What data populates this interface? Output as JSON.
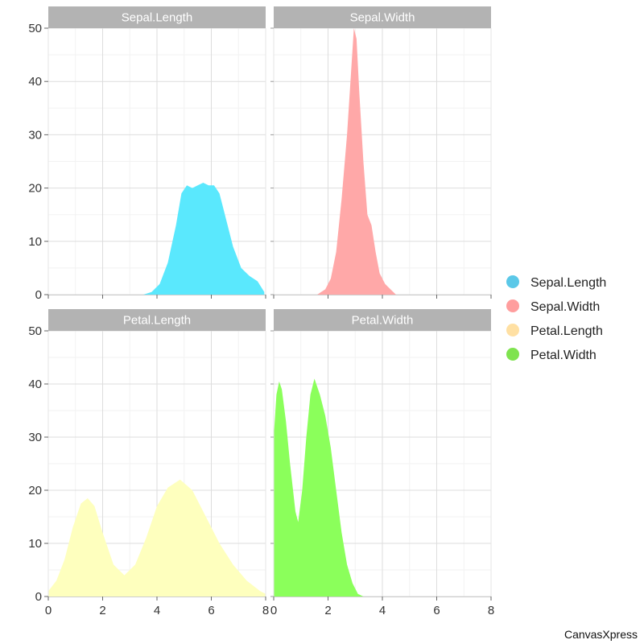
{
  "chart_data": {
    "type": "area",
    "layout": "2x2 facets, shared axes",
    "x_ticks": [
      0,
      2,
      4,
      6,
      8
    ],
    "y_ticks": [
      0,
      10,
      20,
      30,
      40,
      50
    ],
    "xlim": [
      0,
      8
    ],
    "ylim": [
      0,
      50
    ],
    "grid": true,
    "legend_position": "right",
    "panels": [
      {
        "title": "Sepal.Length",
        "color": "#5ae8fd",
        "x": [
          3.5,
          3.8,
          4.1,
          4.4,
          4.7,
          4.9,
          5.1,
          5.3,
          5.5,
          5.7,
          5.9,
          6.1,
          6.3,
          6.5,
          6.8,
          7.1,
          7.4,
          7.7,
          7.95
        ],
        "y": [
          0,
          0.5,
          2,
          6,
          13,
          19,
          20.5,
          20,
          20.5,
          21,
          20.5,
          20.5,
          19,
          15,
          9,
          5,
          3.5,
          2.5,
          0.5
        ]
      },
      {
        "title": "Sepal.Width",
        "color": "#ffa8a8",
        "x": [
          1.6,
          1.9,
          2.1,
          2.3,
          2.5,
          2.7,
          2.85,
          2.95,
          3.05,
          3.15,
          3.3,
          3.45,
          3.6,
          3.75,
          3.9,
          4.1,
          4.3,
          4.5
        ],
        "y": [
          0,
          1,
          3,
          8,
          18,
          30,
          42,
          50,
          48,
          38,
          25,
          15,
          13,
          8,
          4,
          2,
          1,
          0
        ]
      },
      {
        "title": "Petal.Length",
        "color": "#feffbe",
        "x": [
          0,
          0.3,
          0.6,
          0.9,
          1.2,
          1.45,
          1.7,
          2.0,
          2.4,
          2.8,
          3.2,
          3.6,
          4.0,
          4.4,
          4.85,
          5.3,
          5.8,
          6.3,
          6.8,
          7.3,
          7.8,
          8.0
        ],
        "y": [
          1,
          3,
          7,
          13,
          17.5,
          18.5,
          17,
          12,
          6,
          4,
          6,
          11,
          17,
          20.5,
          22,
          20,
          15,
          10,
          6,
          3,
          1,
          0.5
        ]
      },
      {
        "title": "Petal.Width",
        "color": "#8bff5b",
        "x": [
          0,
          0.1,
          0.2,
          0.3,
          0.45,
          0.6,
          0.8,
          0.9,
          1.05,
          1.2,
          1.35,
          1.5,
          1.7,
          1.9,
          2.1,
          2.3,
          2.5,
          2.7,
          2.9,
          3.1,
          3.3
        ],
        "y": [
          30,
          38,
          40.5,
          39,
          33,
          25,
          16,
          14,
          20,
          30,
          38,
          41,
          38,
          34,
          28,
          20,
          12,
          6,
          2.5,
          0.5,
          0
        ]
      }
    ],
    "legend": [
      "Sepal.Length",
      "Sepal.Width",
      "Petal.Length",
      "Petal.Width"
    ],
    "legend_colors": [
      "#5bc8e8",
      "#ff9e9e",
      "#ffe0a3",
      "#7fe34f"
    ]
  },
  "credit": "CanvasXpress"
}
